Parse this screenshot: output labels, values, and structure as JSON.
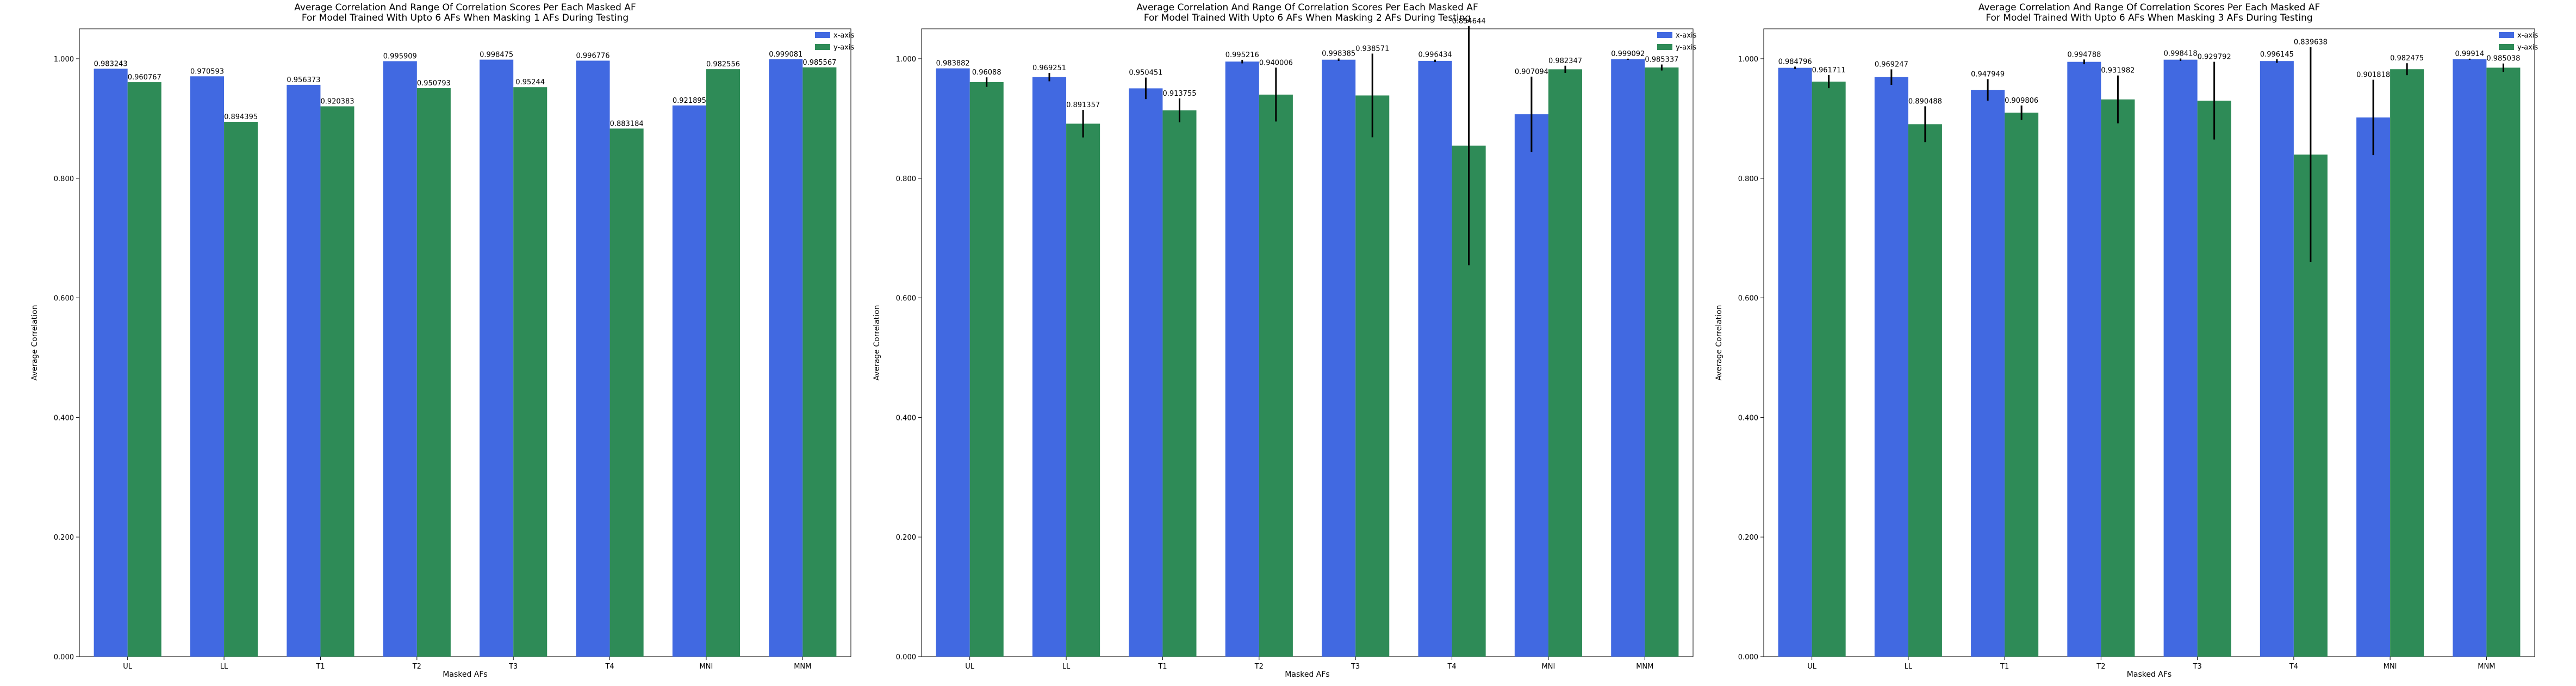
{
  "figure": {
    "xlabel": "Masked AFs",
    "ylabel": "Average Correlation"
  },
  "colors": {
    "x_axis": "#4169e1",
    "y_axis": "#2e8b57",
    "error_bar": "#000000"
  },
  "chart_data": [
    {
      "type": "bar",
      "title": "Average Correlation And Range Of Correlation Scores Per Each Masked AF\nFor Model Trained With Upto 6 AFs When Masking 1 AFs During Testing",
      "xlabel": "Masked AFs",
      "ylabel": "Average Correlation",
      "categories": [
        "UL",
        "LL",
        "T1",
        "T2",
        "T3",
        "T4",
        "MNI",
        "MNM"
      ],
      "ylim": [
        0,
        1.05
      ],
      "yticks": [
        "0.000",
        "0.200",
        "0.400",
        "0.600",
        "0.800",
        "1.000"
      ],
      "legend": "top-right",
      "series": [
        {
          "name": "x-axis",
          "values": [
            0.983243,
            0.970593,
            0.956373,
            0.995909,
            0.998475,
            0.996776,
            0.921895,
            0.999081
          ],
          "labels": [
            "0.983243",
            "0.970593",
            "0.956373",
            "0.995909",
            "0.998475",
            "0.996776",
            "0.921895",
            "0.999081"
          ],
          "errors": [
            0,
            0,
            0,
            0,
            0,
            0,
            0,
            0
          ]
        },
        {
          "name": "y-axis",
          "values": [
            0.960767,
            0.894395,
            0.920383,
            0.950793,
            0.95244,
            0.883184,
            0.982556,
            0.985567
          ],
          "labels": [
            "0.960767",
            "0.894395",
            "0.920383",
            "0.950793",
            "0.95244",
            "0.883184",
            "0.982556",
            "0.985567"
          ],
          "errors": [
            0,
            0,
            0,
            0,
            0,
            0,
            0,
            0
          ]
        }
      ]
    },
    {
      "type": "bar",
      "title": "Average Correlation And Range Of Correlation Scores Per Each Masked AF\nFor Model Trained With Upto 6 AFs When Masking 2 AFs During Testing",
      "xlabel": "Masked AFs",
      "ylabel": "Average Correlation",
      "categories": [
        "UL",
        "LL",
        "T1",
        "T2",
        "T3",
        "T4",
        "MNI",
        "MNM"
      ],
      "ylim": [
        0,
        1.05
      ],
      "yticks": [
        "0.000",
        "0.200",
        "0.400",
        "0.600",
        "0.800",
        "1.000"
      ],
      "legend": "top-right",
      "series": [
        {
          "name": "x-axis",
          "values": [
            0.983882,
            0.969251,
            0.950451,
            0.995216,
            0.998385,
            0.996434,
            0.907094,
            0.999092
          ],
          "labels": [
            "0.983882",
            "0.969251",
            "0.950451",
            "0.995216",
            "0.998385",
            "0.996434",
            "0.907094",
            "0.999092"
          ],
          "errors": [
            0,
            0.007,
            0.018,
            0.003,
            0.002,
            0.002,
            0.063,
            0.001
          ]
        },
        {
          "name": "y-axis",
          "values": [
            0.96088,
            0.891357,
            0.913755,
            0.940006,
            0.938571,
            0.854644,
            0.982347,
            0.985337
          ],
          "labels": [
            "0.96088",
            "0.891357",
            "0.913755",
            "0.940006",
            "0.938571",
            "0.854644",
            "0.982347",
            "0.985337"
          ],
          "errors": [
            0.008,
            0.023,
            0.02,
            0.045,
            0.07,
            0.2,
            0.006,
            0.005
          ]
        }
      ]
    },
    {
      "type": "bar",
      "title": "Average Correlation And Range Of Correlation Scores Per Each Masked AF\nFor Model Trained With Upto 6 AFs When Masking 3 AFs During Testing",
      "xlabel": "Masked AFs",
      "ylabel": "Average Correlation",
      "categories": [
        "UL",
        "LL",
        "T1",
        "T2",
        "T3",
        "T4",
        "MNI",
        "MNM"
      ],
      "ylim": [
        0,
        1.05
      ],
      "yticks": [
        "0.000",
        "0.200",
        "0.400",
        "0.600",
        "0.800",
        "1.000"
      ],
      "legend": "top-right",
      "series": [
        {
          "name": "x-axis",
          "values": [
            0.984796,
            0.969247,
            0.947949,
            0.994788,
            0.998418,
            0.996145,
            0.901818,
            0.99914
          ],
          "labels": [
            "0.984796",
            "0.969247",
            "0.947949",
            "0.994788",
            "0.998418",
            "0.996145",
            "0.901818",
            "0.99914"
          ],
          "errors": [
            0.002,
            0.013,
            0.018,
            0.004,
            0.002,
            0.003,
            0.063,
            0.001
          ]
        },
        {
          "name": "y-axis",
          "values": [
            0.961711,
            0.890488,
            0.909806,
            0.931982,
            0.929792,
            0.839638,
            0.982475,
            0.985038
          ],
          "labels": [
            "0.961711",
            "0.890488",
            "0.909806",
            "0.931982",
            "0.929792",
            "0.839638",
            "0.982475",
            "0.985038"
          ],
          "errors": [
            0.011,
            0.03,
            0.012,
            0.04,
            0.065,
            0.18,
            0.01,
            0.007
          ]
        }
      ]
    }
  ]
}
